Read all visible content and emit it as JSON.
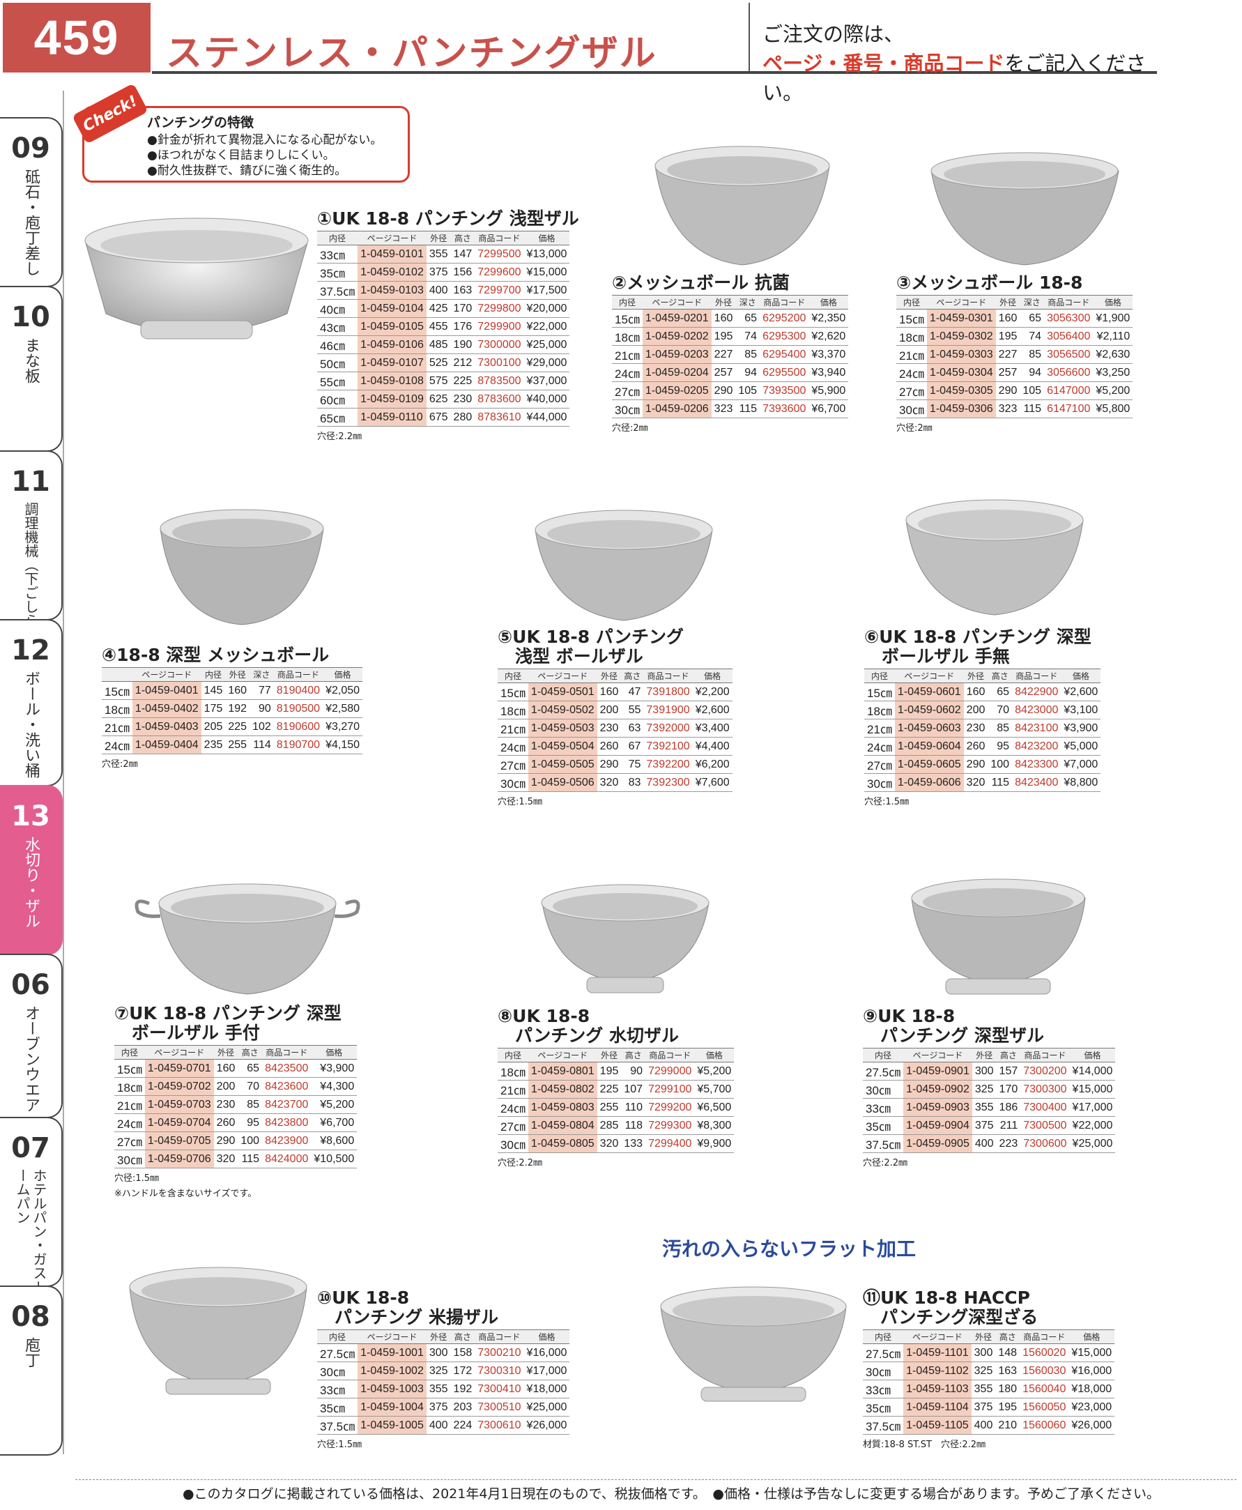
{
  "page_number": "459",
  "page_title": "ステンレス・パンチングザル",
  "order_note": {
    "line1": "ご注文の際は、",
    "line2_red": "ページ・番号・商品コード",
    "line2_rest": "をご記入ください。"
  },
  "side_tabs": [
    {
      "num": "09",
      "label": "砥石・庖丁差し"
    },
    {
      "num": "10",
      "label": "まな板"
    },
    {
      "num": "11",
      "label": "調理機械（下ごしらえ）"
    },
    {
      "num": "12",
      "label": "ボール・洗い桶"
    },
    {
      "num": "13",
      "label": "水切り・ザル"
    },
    {
      "num": "06",
      "label": "オーブンウエア"
    },
    {
      "num": "07",
      "label": "ホテルパン・ガストロノームパン"
    },
    {
      "num": "08",
      "label": "庖丁"
    }
  ],
  "check": {
    "tag": "Check!",
    "title": "パンチングの特徴",
    "items": [
      "●針金が折れて異物混入になる心配がない。",
      "●ほつれがなく目詰まりしにくい。",
      "●耐久性抜群で、錆びに強く衛生的。"
    ]
  },
  "slogan": "汚れの入らないフラット加工",
  "footer": "●このカタログに掲載されている価格は、2021年4月1日現在のもので、税抜価格です。　●価格・仕様は予告なしに変更する場合があります。予めご了承ください。",
  "products": [
    {
      "title": "①UK 18-8 パンチング 浅型ザル",
      "headers": [
        "内径",
        "ページコード",
        "外径",
        "高さ",
        "商品コード",
        "価格"
      ],
      "rows": [
        [
          "33㎝",
          "1-0459-0101",
          "355",
          "147",
          "7299500",
          "¥13,000"
        ],
        [
          "35㎝",
          "1-0459-0102",
          "375",
          "156",
          "7299600",
          "¥15,000"
        ],
        [
          "37.5㎝",
          "1-0459-0103",
          "400",
          "163",
          "7299700",
          "¥17,500"
        ],
        [
          "40㎝",
          "1-0459-0104",
          "425",
          "170",
          "7299800",
          "¥20,000"
        ],
        [
          "43㎝",
          "1-0459-0105",
          "455",
          "176",
          "7299900",
          "¥22,000"
        ],
        [
          "46㎝",
          "1-0459-0106",
          "485",
          "190",
          "7300000",
          "¥25,000"
        ],
        [
          "50㎝",
          "1-0459-0107",
          "525",
          "212",
          "7300100",
          "¥29,000"
        ],
        [
          "55㎝",
          "1-0459-0108",
          "575",
          "225",
          "8783500",
          "¥37,000"
        ],
        [
          "60㎝",
          "1-0459-0109",
          "625",
          "230",
          "8783600",
          "¥40,000"
        ],
        [
          "65㎝",
          "1-0459-0110",
          "675",
          "280",
          "8783610",
          "¥44,000"
        ]
      ],
      "note": "穴径:2.2㎜"
    },
    {
      "title": "②メッシュボール 抗菌",
      "headers": [
        "内径",
        "ページコード",
        "外径",
        "深さ",
        "商品コード",
        "価格"
      ],
      "rows": [
        [
          "15㎝",
          "1-0459-0201",
          "160",
          "65",
          "6295200",
          "¥2,350"
        ],
        [
          "18㎝",
          "1-0459-0202",
          "195",
          "74",
          "6295300",
          "¥2,620"
        ],
        [
          "21㎝",
          "1-0459-0203",
          "227",
          "85",
          "6295400",
          "¥3,370"
        ],
        [
          "24㎝",
          "1-0459-0204",
          "257",
          "94",
          "6295500",
          "¥3,940"
        ],
        [
          "27㎝",
          "1-0459-0205",
          "290",
          "105",
          "7393500",
          "¥5,900"
        ],
        [
          "30㎝",
          "1-0459-0206",
          "323",
          "115",
          "7393600",
          "¥6,700"
        ]
      ],
      "note": "穴径:2㎜"
    },
    {
      "title": "③メッシュボール 18-8",
      "headers": [
        "内径",
        "ページコード",
        "外径",
        "深さ",
        "商品コード",
        "価格"
      ],
      "rows": [
        [
          "15㎝",
          "1-0459-0301",
          "160",
          "65",
          "3056300",
          "¥1,900"
        ],
        [
          "18㎝",
          "1-0459-0302",
          "195",
          "74",
          "3056400",
          "¥2,110"
        ],
        [
          "21㎝",
          "1-0459-0303",
          "227",
          "85",
          "3056500",
          "¥2,630"
        ],
        [
          "24㎝",
          "1-0459-0304",
          "257",
          "94",
          "3056600",
          "¥3,250"
        ],
        [
          "27㎝",
          "1-0459-0305",
          "290",
          "105",
          "6147000",
          "¥5,200"
        ],
        [
          "30㎝",
          "1-0459-0306",
          "323",
          "115",
          "6147100",
          "¥5,800"
        ]
      ],
      "note": "穴径:2㎜"
    },
    {
      "title": "④18-8 深型 メッシュボール",
      "headers": [
        "",
        "ページコード",
        "内径",
        "外径",
        "深さ",
        "商品コード",
        "価格"
      ],
      "rows": [
        [
          "15㎝",
          "1-0459-0401",
          "145",
          "160",
          "77",
          "8190400",
          "¥2,050"
        ],
        [
          "18㎝",
          "1-0459-0402",
          "175",
          "192",
          "90",
          "8190500",
          "¥2,580"
        ],
        [
          "21㎝",
          "1-0459-0403",
          "205",
          "225",
          "102",
          "8190600",
          "¥3,270"
        ],
        [
          "24㎝",
          "1-0459-0404",
          "235",
          "255",
          "114",
          "8190700",
          "¥4,150"
        ]
      ],
      "note": "穴径:2㎜"
    },
    {
      "title": "⑤UK 18-8 パンチング\n　浅型 ボールザル",
      "headers": [
        "内径",
        "ページコード",
        "外径",
        "高さ",
        "商品コード",
        "価格"
      ],
      "rows": [
        [
          "15㎝",
          "1-0459-0501",
          "160",
          "47",
          "7391800",
          "¥2,200"
        ],
        [
          "18㎝",
          "1-0459-0502",
          "200",
          "55",
          "7391900",
          "¥2,600"
        ],
        [
          "21㎝",
          "1-0459-0503",
          "230",
          "63",
          "7392000",
          "¥3,400"
        ],
        [
          "24㎝",
          "1-0459-0504",
          "260",
          "67",
          "7392100",
          "¥4,400"
        ],
        [
          "27㎝",
          "1-0459-0505",
          "290",
          "75",
          "7392200",
          "¥6,200"
        ],
        [
          "30㎝",
          "1-0459-0506",
          "320",
          "83",
          "7392300",
          "¥7,600"
        ]
      ],
      "note": "穴径:1.5㎜"
    },
    {
      "title": "⑥UK 18-8 パンチング 深型\n　ボールザル 手無",
      "headers": [
        "内径",
        "ページコード",
        "外径",
        "高さ",
        "商品コード",
        "価格"
      ],
      "rows": [
        [
          "15㎝",
          "1-0459-0601",
          "160",
          "65",
          "8422900",
          "¥2,600"
        ],
        [
          "18㎝",
          "1-0459-0602",
          "200",
          "70",
          "8423000",
          "¥3,100"
        ],
        [
          "21㎝",
          "1-0459-0603",
          "230",
          "85",
          "8423100",
          "¥3,900"
        ],
        [
          "24㎝",
          "1-0459-0604",
          "260",
          "95",
          "8423200",
          "¥5,000"
        ],
        [
          "27㎝",
          "1-0459-0605",
          "290",
          "100",
          "8423300",
          "¥7,000"
        ],
        [
          "30㎝",
          "1-0459-0606",
          "320",
          "115",
          "8423400",
          "¥8,800"
        ]
      ],
      "note": "穴径:1.5㎜"
    },
    {
      "title": "⑦UK 18-8 パンチング 深型\n　ボールザル 手付",
      "headers": [
        "内径",
        "ページコード",
        "外径",
        "高さ",
        "商品コード",
        "価格"
      ],
      "rows": [
        [
          "15㎝",
          "1-0459-0701",
          "160",
          "65",
          "8423500",
          "¥3,900"
        ],
        [
          "18㎝",
          "1-0459-0702",
          "200",
          "70",
          "8423600",
          "¥4,300"
        ],
        [
          "21㎝",
          "1-0459-0703",
          "230",
          "85",
          "8423700",
          "¥5,200"
        ],
        [
          "24㎝",
          "1-0459-0704",
          "260",
          "95",
          "8423800",
          "¥6,700"
        ],
        [
          "27㎝",
          "1-0459-0705",
          "290",
          "100",
          "8423900",
          "¥8,600"
        ],
        [
          "30㎝",
          "1-0459-0706",
          "320",
          "115",
          "8424000",
          "¥10,500"
        ]
      ],
      "note": "穴径:1.5㎜",
      "note2": "※ハンドルを含まないサイズです。"
    },
    {
      "title": "⑧UK 18-8\n　パンチング 水切ザル",
      "headers": [
        "内径",
        "ページコード",
        "外径",
        "高さ",
        "商品コード",
        "価格"
      ],
      "rows": [
        [
          "18㎝",
          "1-0459-0801",
          "195",
          "90",
          "7299000",
          "¥5,200"
        ],
        [
          "21㎝",
          "1-0459-0802",
          "225",
          "107",
          "7299100",
          "¥5,700"
        ],
        [
          "24㎝",
          "1-0459-0803",
          "255",
          "110",
          "7299200",
          "¥6,500"
        ],
        [
          "27㎝",
          "1-0459-0804",
          "285",
          "118",
          "7299300",
          "¥8,300"
        ],
        [
          "30㎝",
          "1-0459-0805",
          "320",
          "133",
          "7299400",
          "¥9,900"
        ]
      ],
      "note": "穴径:2.2㎜"
    },
    {
      "title": "⑨UK 18-8\n　パンチング 深型ザル",
      "headers": [
        "内径",
        "ページコード",
        "外径",
        "高さ",
        "商品コード",
        "価格"
      ],
      "rows": [
        [
          "27.5㎝",
          "1-0459-0901",
          "300",
          "157",
          "7300200",
          "¥14,000"
        ],
        [
          "30㎝",
          "1-0459-0902",
          "325",
          "170",
          "7300300",
          "¥15,000"
        ],
        [
          "33㎝",
          "1-0459-0903",
          "355",
          "186",
          "7300400",
          "¥17,000"
        ],
        [
          "35㎝",
          "1-0459-0904",
          "375",
          "211",
          "7300500",
          "¥22,000"
        ],
        [
          "37.5㎝",
          "1-0459-0905",
          "400",
          "223",
          "7300600",
          "¥25,000"
        ]
      ],
      "note": "穴径:2.2㎜"
    },
    {
      "title": "⑩UK 18-8\n　パンチング 米揚ザル",
      "headers": [
        "内径",
        "ページコード",
        "外径",
        "高さ",
        "商品コード",
        "価格"
      ],
      "rows": [
        [
          "27.5㎝",
          "1-0459-1001",
          "300",
          "158",
          "7300210",
          "¥16,000"
        ],
        [
          "30㎝",
          "1-0459-1002",
          "325",
          "172",
          "7300310",
          "¥17,000"
        ],
        [
          "33㎝",
          "1-0459-1003",
          "355",
          "192",
          "7300410",
          "¥18,000"
        ],
        [
          "35㎝",
          "1-0459-1004",
          "375",
          "203",
          "7300510",
          "¥25,000"
        ],
        [
          "37.5㎝",
          "1-0459-1005",
          "400",
          "224",
          "7300610",
          "¥26,000"
        ]
      ],
      "note": "穴径:1.5㎜"
    },
    {
      "title": "⑪UK 18-8 HACCP\n　パンチング深型ざる",
      "headers": [
        "内径",
        "ページコード",
        "外径",
        "高さ",
        "商品コード",
        "価格"
      ],
      "rows": [
        [
          "27.5㎝",
          "1-0459-1101",
          "300",
          "148",
          "1560020",
          "¥15,000"
        ],
        [
          "30㎝",
          "1-0459-1102",
          "325",
          "163",
          "1560030",
          "¥16,000"
        ],
        [
          "33㎝",
          "1-0459-1103",
          "355",
          "180",
          "1560040",
          "¥18,000"
        ],
        [
          "35㎝",
          "1-0459-1104",
          "375",
          "195",
          "1560050",
          "¥23,000"
        ],
        [
          "37.5㎝",
          "1-0459-1105",
          "400",
          "210",
          "1560060",
          "¥26,000"
        ]
      ],
      "note": "材質:18-8 ST.ST　穴径:2.2㎜"
    }
  ]
}
